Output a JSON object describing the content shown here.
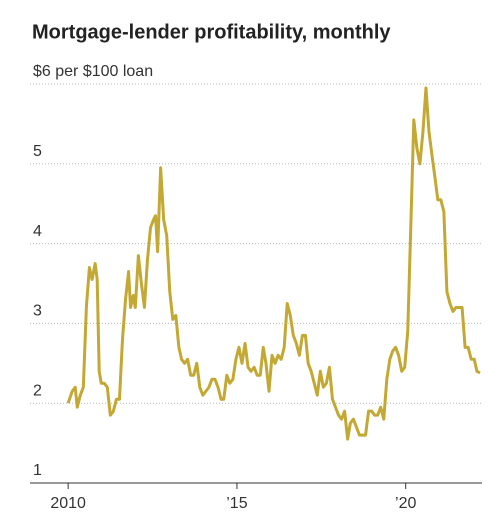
{
  "chart_data": {
    "type": "line",
    "title": "Mortgage-lender profitability, monthly",
    "x": [
      2010.0,
      2010.12,
      2010.21,
      2010.27,
      2010.36,
      2010.45,
      2010.54,
      2010.63,
      2010.71,
      2010.8,
      2010.86,
      2010.92,
      2010.98,
      2011.07,
      2011.16,
      2011.25,
      2011.34,
      2011.43,
      2011.52,
      2011.61,
      2011.7,
      2011.79,
      2011.85,
      2011.93,
      2011.99,
      2012.08,
      2012.17,
      2012.26,
      2012.35,
      2012.44,
      2012.53,
      2012.59,
      2012.65,
      2012.74,
      2012.83,
      2012.92,
      2013.01,
      2013.1,
      2013.19,
      2013.28,
      2013.36,
      2013.45,
      2013.54,
      2013.63,
      2013.72,
      2013.81,
      2013.9,
      2013.99,
      2014.08,
      2014.17,
      2014.26,
      2014.35,
      2014.44,
      2014.53,
      2014.61,
      2014.7,
      2014.79,
      2014.88,
      2014.97,
      2015.06,
      2015.15,
      2015.24,
      2015.33,
      2015.42,
      2015.51,
      2015.6,
      2015.69,
      2015.78,
      2015.86,
      2015.95,
      2016.04,
      2016.13,
      2016.22,
      2016.31,
      2016.4,
      2016.49,
      2016.58,
      2016.67,
      2016.76,
      2016.85,
      2016.94,
      2017.03,
      2017.11,
      2017.2,
      2017.29,
      2017.38,
      2017.47,
      2017.56,
      2017.65,
      2017.74,
      2017.83,
      2017.92,
      2018.01,
      2018.1,
      2018.19,
      2018.28,
      2018.36,
      2018.45,
      2018.54,
      2018.63,
      2018.72,
      2018.81,
      2018.9,
      2018.99,
      2019.08,
      2019.17,
      2019.26,
      2019.35,
      2019.44,
      2019.53,
      2019.61,
      2019.7,
      2019.79,
      2019.88,
      2019.97,
      2020.06,
      2020.15,
      2020.24,
      2020.33,
      2020.42,
      2020.51,
      2020.6,
      2020.69,
      2020.78,
      2020.86,
      2020.95,
      2021.04,
      2021.13,
      2021.22,
      2021.31,
      2021.4,
      2021.49,
      2021.58,
      2021.67,
      2021.76,
      2021.85,
      2021.94,
      2022.03,
      2022.11,
      2022.2
    ],
    "series": [
      {
        "color": "#c4a834",
        "values": [
          2.0,
          2.15,
          2.2,
          1.95,
          2.1,
          2.2,
          3.2,
          3.7,
          3.55,
          3.75,
          3.55,
          2.4,
          2.25,
          2.25,
          2.2,
          1.85,
          1.9,
          2.05,
          2.05,
          2.8,
          3.3,
          3.65,
          3.2,
          3.35,
          3.2,
          3.85,
          3.5,
          3.2,
          3.8,
          4.2,
          4.3,
          4.35,
          3.9,
          4.95,
          4.3,
          4.1,
          3.4,
          3.05,
          3.1,
          2.7,
          2.55,
          2.5,
          2.55,
          2.35,
          2.35,
          2.5,
          2.2,
          2.1,
          2.15,
          2.2,
          2.3,
          2.3,
          2.2,
          2.05,
          2.05,
          2.35,
          2.25,
          2.3,
          2.55,
          2.7,
          2.5,
          2.75,
          2.45,
          2.4,
          2.45,
          2.35,
          2.35,
          2.7,
          2.5,
          2.15,
          2.6,
          2.5,
          2.6,
          2.55,
          2.7,
          3.25,
          3.1,
          2.85,
          2.75,
          2.6,
          2.85,
          2.85,
          2.5,
          2.4,
          2.25,
          2.1,
          2.4,
          2.2,
          2.25,
          2.45,
          2.05,
          1.95,
          1.85,
          1.8,
          1.9,
          1.55,
          1.75,
          1.8,
          1.7,
          1.6,
          1.6,
          1.6,
          1.9,
          1.9,
          1.85,
          1.85,
          1.95,
          1.8,
          2.3,
          2.55,
          2.65,
          2.7,
          2.6,
          2.4,
          2.45,
          2.9,
          4.2,
          5.55,
          5.2,
          5.0,
          5.4,
          5.95,
          5.4,
          5.1,
          4.85,
          4.55,
          4.55,
          4.4,
          3.4,
          3.25,
          3.15,
          3.2,
          3.2,
          3.2,
          2.7,
          2.7,
          2.55,
          2.55,
          2.4,
          2.38
        ]
      }
    ],
    "xlim": [
      2008.87,
      2022.26
    ],
    "xticks": [
      {
        "value": 2010,
        "label": "2010"
      },
      {
        "value": 2015,
        "label": "’15"
      },
      {
        "value": 2020,
        "label": "’20"
      }
    ],
    "ylim": [
      1,
      6
    ],
    "yticks": [
      1,
      2,
      3,
      4,
      5,
      {
        "value": 6,
        "label": "$6 per $100 loan"
      }
    ],
    "grid": true
  }
}
